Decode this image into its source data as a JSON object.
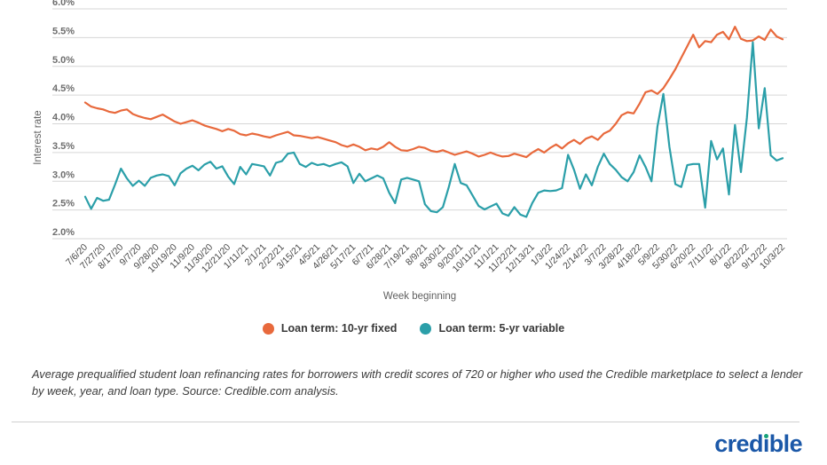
{
  "chart_data": {
    "type": "line",
    "xlabel": "Week beginning",
    "ylabel": "Interest rate",
    "ylim": [
      2.0,
      6.0
    ],
    "ytick_step": 0.5,
    "ytick_format": "percent",
    "grid": true,
    "legend_position": "bottom",
    "x_tick_rotation": -45,
    "ticks_every_n_points": 3,
    "categories": [
      "7/6/20",
      "7/27/20",
      "8/17/20",
      "9/7/20",
      "9/28/20",
      "10/19/20",
      "11/9/20",
      "11/30/20",
      "12/21/20",
      "1/11/21",
      "2/1/21",
      "2/22/21",
      "3/15/21",
      "4/5/21",
      "4/26/21",
      "5/17/21",
      "6/7/21",
      "6/28/21",
      "7/19/21",
      "8/9/21",
      "8/30/21",
      "9/20/21",
      "10/11/21",
      "11/1/21",
      "11/22/21",
      "12/13/21",
      "1/3/22",
      "1/24/22",
      "2/14/22",
      "3/7/22",
      "3/28/22",
      "4/18/22",
      "5/9/22",
      "5/30/22",
      "6/20/22",
      "7/11/22",
      "8/1/22",
      "8/22/22",
      "9/12/22",
      "10/3/22"
    ],
    "series": [
      {
        "name": "Loan term: 10-yr fixed",
        "color": "#e8693c",
        "values": [
          4.37,
          4.3,
          4.27,
          4.25,
          4.21,
          4.19,
          4.23,
          4.25,
          4.17,
          4.13,
          4.1,
          4.08,
          4.12,
          4.16,
          4.1,
          4.04,
          4.0,
          4.03,
          4.06,
          4.02,
          3.97,
          3.94,
          3.91,
          3.87,
          3.91,
          3.88,
          3.82,
          3.8,
          3.83,
          3.81,
          3.78,
          3.76,
          3.8,
          3.83,
          3.86,
          3.8,
          3.79,
          3.77,
          3.75,
          3.77,
          3.74,
          3.71,
          3.68,
          3.63,
          3.6,
          3.64,
          3.6,
          3.54,
          3.57,
          3.55,
          3.6,
          3.68,
          3.6,
          3.54,
          3.53,
          3.56,
          3.6,
          3.58,
          3.53,
          3.51,
          3.54,
          3.5,
          3.46,
          3.49,
          3.52,
          3.48,
          3.43,
          3.46,
          3.5,
          3.46,
          3.43,
          3.44,
          3.48,
          3.45,
          3.42,
          3.5,
          3.56,
          3.5,
          3.58,
          3.64,
          3.57,
          3.66,
          3.72,
          3.65,
          3.74,
          3.78,
          3.72,
          3.83,
          3.88,
          4.0,
          4.15,
          4.2,
          4.18,
          4.35,
          4.55,
          4.58,
          4.52,
          4.62,
          4.78,
          4.95,
          5.15,
          5.35,
          5.55,
          5.33,
          5.44,
          5.42,
          5.55,
          5.6,
          5.47,
          5.69,
          5.48,
          5.44,
          5.45,
          5.52,
          5.46,
          5.64,
          5.52,
          5.47
        ]
      },
      {
        "name": "Loan term: 5-yr variable",
        "color": "#2b9fa9",
        "values": [
          2.73,
          2.52,
          2.71,
          2.66,
          2.68,
          2.94,
          3.22,
          3.05,
          2.92,
          3.01,
          2.92,
          3.06,
          3.1,
          3.12,
          3.09,
          2.93,
          3.14,
          3.22,
          3.27,
          3.19,
          3.29,
          3.34,
          3.22,
          3.26,
          3.08,
          2.95,
          3.25,
          3.12,
          3.3,
          3.28,
          3.26,
          3.1,
          3.32,
          3.35,
          3.48,
          3.5,
          3.3,
          3.25,
          3.32,
          3.28,
          3.3,
          3.26,
          3.3,
          3.33,
          3.26,
          2.97,
          3.13,
          3.0,
          3.05,
          3.1,
          3.05,
          2.8,
          2.62,
          3.03,
          3.06,
          3.03,
          3.0,
          2.6,
          2.48,
          2.46,
          2.55,
          2.9,
          3.3,
          2.97,
          2.93,
          2.75,
          2.57,
          2.51,
          2.56,
          2.61,
          2.44,
          2.4,
          2.55,
          2.42,
          2.38,
          2.62,
          2.8,
          2.84,
          2.83,
          2.84,
          2.88,
          3.46,
          3.2,
          2.87,
          3.12,
          2.93,
          3.25,
          3.48,
          3.3,
          3.2,
          3.07,
          3.0,
          3.16,
          3.45,
          3.25,
          3.0,
          3.95,
          4.52,
          3.6,
          2.95,
          2.9,
          3.28,
          3.3,
          3.3,
          2.54,
          3.7,
          3.38,
          3.57,
          2.77,
          3.98,
          3.16,
          4.1,
          5.42,
          3.92,
          4.62,
          3.45,
          3.36,
          3.4
        ]
      }
    ]
  },
  "caption": "Average prequalified student loan refinancing rates for borrowers with credit scores of 720 or higher who used the Credible marketplace to select a lender by week, year, and loan type. Source: Credible.com analysis.",
  "footer": {
    "brand": "credible"
  }
}
